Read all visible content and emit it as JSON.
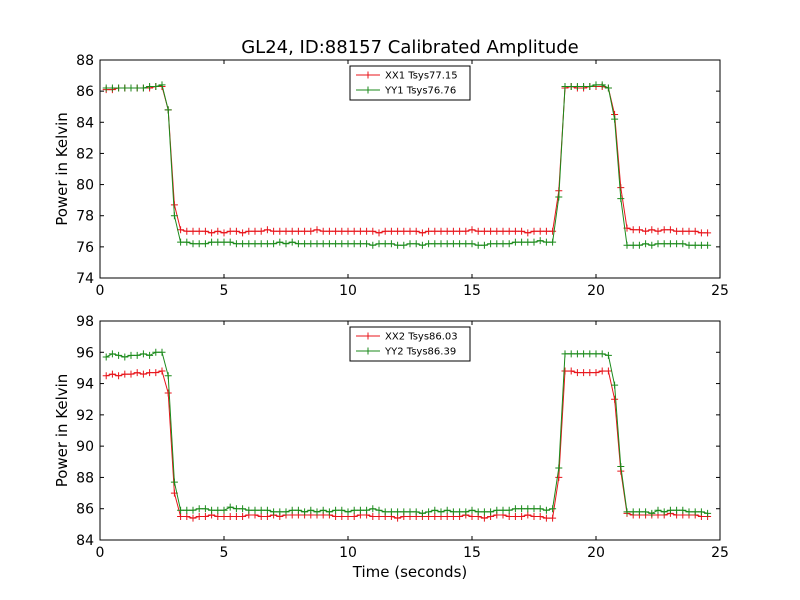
{
  "title": "GL24, ID:88157 Calibrated Amplitude",
  "chart_data": [
    {
      "type": "line",
      "title": "GL24, ID:88157 Calibrated Amplitude",
      "xlabel": "",
      "ylabel": "Power in Kelvin",
      "xlim": [
        0,
        25
      ],
      "ylim": [
        74,
        88
      ],
      "xticks": [
        "0",
        "5",
        "10",
        "15",
        "20",
        "25"
      ],
      "yticks": [
        "74",
        "76",
        "78",
        "80",
        "82",
        "84",
        "86",
        "88"
      ],
      "legend": "top-center",
      "x": [
        0.25,
        0.5,
        0.75,
        1.0,
        1.25,
        1.5,
        1.75,
        2.0,
        2.25,
        2.5,
        2.75,
        3.0,
        3.25,
        3.5,
        3.75,
        4.0,
        4.25,
        4.5,
        4.75,
        5.0,
        5.25,
        5.5,
        5.75,
        6.0,
        6.25,
        6.5,
        6.75,
        7.0,
        7.25,
        7.5,
        7.75,
        8.0,
        8.25,
        8.5,
        8.75,
        9.0,
        9.25,
        9.5,
        9.75,
        10.0,
        10.25,
        10.5,
        10.75,
        11.0,
        11.25,
        11.5,
        11.75,
        12.0,
        12.25,
        12.5,
        12.75,
        13.0,
        13.25,
        13.5,
        13.75,
        14.0,
        14.25,
        14.5,
        14.75,
        15.0,
        15.25,
        15.5,
        15.75,
        16.0,
        16.25,
        16.5,
        16.75,
        17.0,
        17.25,
        17.5,
        17.75,
        18.0,
        18.25,
        18.5,
        18.75,
        19.0,
        19.25,
        19.5,
        19.75,
        20.0,
        20.25,
        20.5,
        20.75,
        21.0,
        21.25,
        21.5,
        21.75,
        22.0,
        22.25,
        22.5,
        22.75,
        23.0,
        23.25,
        23.5,
        23.75,
        24.0,
        24.25,
        24.5
      ],
      "series": [
        {
          "name": "XX1 Tsys77.15",
          "color": "#e8141b",
          "values": [
            86.1,
            86.1,
            86.2,
            86.2,
            86.2,
            86.2,
            86.2,
            86.2,
            86.3,
            86.3,
            84.8,
            78.7,
            77.1,
            77.0,
            77.0,
            77.0,
            77.0,
            76.9,
            77.0,
            76.9,
            77.0,
            77.0,
            76.9,
            77.0,
            77.0,
            77.0,
            77.1,
            77.0,
            77.0,
            77.0,
            77.0,
            77.0,
            77.0,
            77.0,
            77.1,
            77.0,
            77.0,
            77.0,
            77.0,
            77.0,
            77.0,
            77.0,
            77.0,
            77.0,
            76.9,
            77.0,
            77.0,
            77.0,
            77.0,
            77.0,
            77.0,
            76.9,
            77.0,
            77.0,
            77.0,
            77.0,
            77.0,
            77.0,
            77.0,
            77.1,
            77.0,
            77.0,
            77.0,
            77.0,
            77.0,
            77.0,
            77.0,
            77.0,
            76.9,
            77.0,
            77.0,
            77.0,
            77.0,
            79.6,
            86.2,
            86.3,
            86.2,
            86.2,
            86.3,
            86.3,
            86.3,
            86.2,
            84.5,
            79.8,
            77.2,
            77.1,
            77.1,
            77.0,
            77.1,
            77.0,
            77.1,
            77.1,
            77.0,
            77.0,
            77.0,
            77.0,
            76.9,
            76.9
          ]
        },
        {
          "name": "YY1 Tsys76.76",
          "color": "#1b8a1b",
          "values": [
            86.2,
            86.2,
            86.2,
            86.2,
            86.2,
            86.2,
            86.2,
            86.3,
            86.3,
            86.4,
            84.8,
            78.0,
            76.3,
            76.3,
            76.2,
            76.2,
            76.2,
            76.3,
            76.3,
            76.3,
            76.3,
            76.2,
            76.2,
            76.2,
            76.2,
            76.2,
            76.2,
            76.2,
            76.3,
            76.2,
            76.3,
            76.2,
            76.2,
            76.2,
            76.2,
            76.2,
            76.2,
            76.2,
            76.2,
            76.2,
            76.2,
            76.2,
            76.2,
            76.1,
            76.2,
            76.2,
            76.2,
            76.1,
            76.1,
            76.2,
            76.2,
            76.1,
            76.2,
            76.2,
            76.2,
            76.2,
            76.2,
            76.2,
            76.2,
            76.2,
            76.1,
            76.1,
            76.2,
            76.2,
            76.2,
            76.2,
            76.3,
            76.3,
            76.3,
            76.3,
            76.4,
            76.3,
            76.3,
            79.2,
            86.3,
            86.3,
            86.3,
            86.3,
            86.3,
            86.4,
            86.4,
            86.2,
            84.2,
            79.1,
            76.1,
            76.1,
            76.1,
            76.2,
            76.1,
            76.2,
            76.2,
            76.2,
            76.2,
            76.2,
            76.1,
            76.1,
            76.1,
            76.1
          ]
        }
      ]
    },
    {
      "type": "line",
      "title": "",
      "xlabel": "Time (seconds)",
      "ylabel": "Power in Kelvin",
      "xlim": [
        0,
        25
      ],
      "ylim": [
        84,
        98
      ],
      "xticks": [
        "0",
        "5",
        "10",
        "15",
        "20",
        "25"
      ],
      "yticks": [
        "84",
        "86",
        "88",
        "90",
        "92",
        "94",
        "96",
        "98"
      ],
      "legend": "top-center",
      "x": [
        0.25,
        0.5,
        0.75,
        1.0,
        1.25,
        1.5,
        1.75,
        2.0,
        2.25,
        2.5,
        2.75,
        3.0,
        3.25,
        3.5,
        3.75,
        4.0,
        4.25,
        4.5,
        4.75,
        5.0,
        5.25,
        5.5,
        5.75,
        6.0,
        6.25,
        6.5,
        6.75,
        7.0,
        7.25,
        7.5,
        7.75,
        8.0,
        8.25,
        8.5,
        8.75,
        9.0,
        9.25,
        9.5,
        9.75,
        10.0,
        10.25,
        10.5,
        10.75,
        11.0,
        11.25,
        11.5,
        11.75,
        12.0,
        12.25,
        12.5,
        12.75,
        13.0,
        13.25,
        13.5,
        13.75,
        14.0,
        14.25,
        14.5,
        14.75,
        15.0,
        15.25,
        15.5,
        15.75,
        16.0,
        16.25,
        16.5,
        16.75,
        17.0,
        17.25,
        17.5,
        17.75,
        18.0,
        18.25,
        18.5,
        18.75,
        19.0,
        19.25,
        19.5,
        19.75,
        20.0,
        20.25,
        20.5,
        20.75,
        21.0,
        21.25,
        21.5,
        21.75,
        22.0,
        22.25,
        22.5,
        22.75,
        23.0,
        23.25,
        23.5,
        23.75,
        24.0,
        24.25,
        24.5
      ],
      "series": [
        {
          "name": "XX2 Tsys86.03",
          "color": "#e8141b",
          "values": [
            94.5,
            94.6,
            94.5,
            94.6,
            94.6,
            94.7,
            94.6,
            94.7,
            94.7,
            94.8,
            93.4,
            87.0,
            85.5,
            85.5,
            85.4,
            85.5,
            85.5,
            85.6,
            85.5,
            85.5,
            85.5,
            85.5,
            85.5,
            85.6,
            85.6,
            85.5,
            85.5,
            85.6,
            85.5,
            85.6,
            85.6,
            85.6,
            85.6,
            85.6,
            85.6,
            85.6,
            85.6,
            85.5,
            85.5,
            85.5,
            85.5,
            85.6,
            85.6,
            85.5,
            85.5,
            85.5,
            85.5,
            85.4,
            85.5,
            85.5,
            85.5,
            85.5,
            85.5,
            85.5,
            85.5,
            85.5,
            85.5,
            85.5,
            85.6,
            85.5,
            85.5,
            85.4,
            85.5,
            85.6,
            85.6,
            85.5,
            85.5,
            85.5,
            85.6,
            85.5,
            85.5,
            85.4,
            85.4,
            88.0,
            94.8,
            94.8,
            94.7,
            94.7,
            94.7,
            94.7,
            94.8,
            94.8,
            93.0,
            88.4,
            85.7,
            85.6,
            85.6,
            85.6,
            85.6,
            85.6,
            85.6,
            85.7,
            85.6,
            85.6,
            85.6,
            85.6,
            85.5,
            85.5
          ]
        },
        {
          "name": "YY2 Tsys86.39",
          "color": "#1b8a1b",
          "values": [
            95.7,
            95.9,
            95.8,
            95.7,
            95.8,
            95.8,
            95.9,
            95.8,
            96.0,
            96.0,
            94.5,
            87.7,
            85.9,
            85.9,
            85.9,
            86.0,
            86.0,
            85.9,
            85.9,
            85.9,
            86.1,
            86.0,
            86.0,
            85.9,
            85.9,
            85.9,
            85.9,
            85.8,
            85.8,
            85.8,
            85.9,
            85.9,
            85.8,
            85.9,
            85.8,
            85.9,
            85.8,
            85.9,
            85.9,
            85.8,
            85.9,
            85.9,
            85.9,
            86.0,
            85.9,
            85.8,
            85.8,
            85.8,
            85.8,
            85.8,
            85.8,
            85.7,
            85.8,
            85.9,
            85.8,
            85.9,
            85.8,
            85.8,
            85.8,
            85.9,
            85.8,
            85.8,
            85.8,
            85.9,
            85.9,
            85.9,
            86.0,
            86.0,
            86.0,
            86.0,
            86.0,
            85.9,
            86.0,
            88.6,
            95.9,
            95.9,
            95.9,
            95.9,
            95.9,
            95.9,
            95.9,
            95.8,
            93.9,
            88.7,
            85.8,
            85.8,
            85.8,
            85.8,
            85.7,
            85.9,
            85.8,
            85.9,
            85.9,
            85.9,
            85.8,
            85.8,
            85.8,
            85.7
          ]
        }
      ]
    }
  ]
}
